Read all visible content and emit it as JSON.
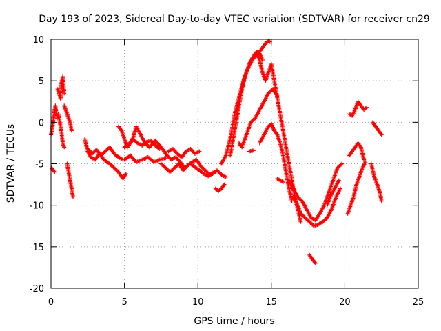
{
  "chart_data": {
    "type": "scatter",
    "title": "Day 193 of 2023, Sidereal Day-to-day VTEC variation (SDTVAR) for receiver cn29",
    "xlabel": "GPS time / hours",
    "ylabel": "SDTVAR / TECUs",
    "xlim": [
      0,
      25
    ],
    "ylim": [
      -20,
      10
    ],
    "xticks": [
      0,
      5,
      10,
      15,
      20,
      25
    ],
    "yticks": [
      -20,
      -15,
      -10,
      -5,
      0,
      5,
      10
    ],
    "xtick_labels": [
      "0",
      "5",
      "10",
      "15",
      "20",
      "25"
    ],
    "ytick_labels": [
      "-20",
      "-15",
      "-10",
      "-5",
      "0",
      "5",
      "10"
    ],
    "grid": true,
    "marker": "+",
    "series": [
      {
        "name": "SDTVAR",
        "color": "#ff0000",
        "traces": [
          {
            "x": [
              0,
              0.1,
              0.2,
              0.3,
              0.4
            ],
            "y": [
              -1.5,
              -0.5,
              1,
              2,
              0.5
            ]
          },
          {
            "x": [
              0.05,
              0.15,
              0.25
            ],
            "y": [
              -5.5,
              -5.8,
              -6
            ]
          },
          {
            "x": [
              0.45,
              0.55,
              0.65,
              0.7,
              0.8,
              0.9
            ],
            "y": [
              4,
              3.5,
              2.8,
              4.5,
              5.5,
              3.5
            ]
          },
          {
            "x": [
              0.5,
              0.6,
              0.7,
              0.8,
              0.9
            ],
            "y": [
              1,
              0,
              -1,
              -2.5,
              -3
            ]
          },
          {
            "x": [
              0.9,
              1,
              1.1,
              1.2,
              1.3,
              1.4
            ],
            "y": [
              2,
              1.5,
              1,
              0.5,
              0,
              -1
            ]
          },
          {
            "x": [
              1.1,
              1.2,
              1.3,
              1.4,
              1.5
            ],
            "y": [
              -5,
              -6,
              -7,
              -8,
              -9
            ]
          },
          {
            "x": [
              2.3,
              2.5,
              2.7,
              3,
              3.3,
              3.6,
              4,
              4.3,
              4.6,
              4.9,
              5.1
            ],
            "y": [
              -2,
              -3.5,
              -4.2,
              -4.5,
              -3.8,
              -4.5,
              -5,
              -5.5,
              -6,
              -6.8,
              -6.2
            ]
          },
          {
            "x": [
              2.5,
              2.8,
              3.1,
              3.4,
              3.7,
              4,
              4.3,
              4.6,
              4.9
            ],
            "y": [
              -3.2,
              -3.8,
              -3.3,
              -4,
              -3.5,
              -3,
              -3.8,
              -4.2,
              -4.5
            ]
          },
          {
            "x": [
              4.6,
              4.8,
              5,
              5.2,
              5.4,
              5.6,
              5.8,
              6.1,
              6.4,
              6.7,
              7.1,
              7.5,
              7.9,
              8.2,
              8.5,
              8.8,
              9.1
            ],
            "y": [
              -0.5,
              -1,
              -2,
              -3,
              -2.5,
              -1.8,
              -0.5,
              -1.5,
              -2.5,
              -3,
              -2.2,
              -3,
              -4,
              -4.5,
              -4.2,
              -4.8,
              -5.5
            ]
          },
          {
            "x": [
              5,
              5.4,
              5.8,
              6.2,
              6.6,
              7,
              7.4,
              7.8
            ],
            "y": [
              -4.5,
              -4,
              -4.8,
              -4.5,
              -4.2,
              -4.8,
              -4.5,
              -4.3
            ]
          },
          {
            "x": [
              5,
              5.3,
              5.6,
              5.9,
              6.2,
              6.5,
              6.8,
              7.1,
              7.4
            ],
            "y": [
              -3,
              -2.6,
              -2.1,
              -2.5,
              -2.8,
              -2.4,
              -2.2,
              -2.8,
              -3.2
            ]
          },
          {
            "x": [
              7.5,
              7.8,
              8.1,
              8.4,
              8.7,
              9,
              9.3,
              9.6,
              9.9,
              10.2,
              10.5,
              10.8,
              11.1
            ],
            "y": [
              -5,
              -5.5,
              -6,
              -5.5,
              -5,
              -5.8,
              -5.2,
              -4.8,
              -4.5,
              -5.3,
              -5.8,
              -6.3,
              -6
            ]
          },
          {
            "x": [
              8,
              8.3,
              8.6,
              8.9,
              9.2,
              9.5,
              9.8,
              10.1
            ],
            "y": [
              -3.5,
              -3.2,
              -3.8,
              -4.2,
              -3.5,
              -3.2,
              -3.8,
              -3.5
            ]
          },
          {
            "x": [
              9.5,
              9.8,
              10.1,
              10.4,
              10.7,
              11,
              11.3,
              11.6,
              11.9
            ],
            "y": [
              -5,
              -5.4,
              -5.8,
              -6.2,
              -6.5,
              -6.2,
              -5.8,
              -6.3,
              -6.6
            ]
          },
          {
            "x": [
              11.2,
              11.4,
              11.6,
              11.8
            ],
            "y": [
              -8,
              -8.3,
              -8,
              -7.5
            ]
          },
          {
            "x": [
              11.6,
              11.9,
              12.2,
              12.5,
              12.8,
              13.1,
              13.4,
              13.7,
              14,
              14.2,
              14.4,
              14.6,
              14.8,
              14.9
            ],
            "y": [
              -5,
              -4,
              -2,
              1,
              3,
              5,
              6.5,
              7.5,
              8.2,
              8.5,
              9,
              9.5,
              9.8,
              9.7
            ]
          },
          {
            "x": [
              12.2,
              12.4,
              12.6,
              12.8,
              13,
              13.2,
              13.4,
              13.6,
              13.8,
              14,
              14.2,
              14.4
            ],
            "y": [
              -4,
              -2,
              0,
              2,
              4,
              5.5,
              6.5,
              7.5,
              8,
              8.5,
              8.3,
              7.5
            ]
          },
          {
            "x": [
              14,
              14.2,
              14.4,
              14.6,
              14.8,
              15,
              15.2,
              15.4,
              15.6,
              15.8,
              16,
              16.2,
              16.4,
              16.6,
              16.8,
              17
            ],
            "y": [
              8.5,
              7.5,
              6,
              5,
              6,
              7,
              5,
              3,
              1,
              -1,
              -3,
              -5,
              -7,
              -9,
              -10.5,
              -12
            ]
          },
          {
            "x": [
              12.8,
              13,
              13.3,
              13.6,
              13.9,
              14.2,
              14.5,
              14.8,
              15.1,
              15.4
            ],
            "y": [
              -2.5,
              -3,
              -1.5,
              0,
              0.5,
              1.5,
              2.5,
              3.5,
              4,
              3.2
            ]
          },
          {
            "x": [
              13.5,
              13.8
            ],
            "y": [
              -3.5,
              -3.4
            ]
          },
          {
            "x": [
              14.2,
              14.5,
              14.8,
              15,
              15.2,
              15.4,
              15.6,
              15.8,
              16,
              16.2,
              16.4
            ],
            "y": [
              -2.5,
              -1.5,
              -0.5,
              -0.2,
              -1,
              -1.5,
              -2.5,
              -4,
              -6,
              -8,
              -9.5
            ]
          },
          {
            "x": [
              15.4,
              15.6,
              15.8
            ],
            "y": [
              -6.8,
              -7,
              -7.2
            ]
          },
          {
            "x": [
              16.2,
              16.5,
              16.8,
              17.1,
              17.4,
              17.7,
              18,
              18.3,
              18.6,
              18.9,
              19.2,
              19.5,
              19.8
            ],
            "y": [
              -7,
              -8,
              -9,
              -9.5,
              -10.5,
              -11.5,
              -11.8,
              -11,
              -10,
              -8.5,
              -7,
              -5.5,
              -5
            ]
          },
          {
            "x": [
              16.5,
              16.8,
              17,
              17.3,
              17.6,
              17.9,
              18.2,
              18.5,
              18.8,
              19.1,
              19.4,
              19.7
            ],
            "y": [
              -9,
              -10,
              -11,
              -11.5,
              -12,
              -12.5,
              -12.3,
              -12,
              -11.5,
              -10.5,
              -9,
              -8
            ]
          },
          {
            "x": [
              17.6,
              17.8,
              18
            ],
            "y": [
              -16,
              -16.5,
              -17
            ]
          },
          {
            "x": [
              18.8,
              19,
              19.3,
              19.6
            ],
            "y": [
              -10,
              -9,
              -8,
              -7
            ]
          },
          {
            "x": [
              20.3,
              20.5,
              20.7,
              20.9,
              21.1,
              21.3,
              21.5
            ],
            "y": [
              1,
              0.8,
              1.5,
              2.5,
              2,
              1.5,
              1.8
            ]
          },
          {
            "x": [
              20.3,
              20.5,
              20.7,
              20.9,
              21.1,
              21.3
            ],
            "y": [
              -4,
              -3.5,
              -3,
              -2.5,
              -3,
              -4.5
            ]
          },
          {
            "x": [
              20.2,
              20.4,
              20.6,
              20.8,
              21,
              21.2,
              21.4
            ],
            "y": [
              -11,
              -10,
              -9,
              -7.5,
              -6.5,
              -5.5,
              -4.8
            ]
          },
          {
            "x": [
              21.9,
              22.1,
              22.3,
              22.5
            ],
            "y": [
              0,
              -0.5,
              -1,
              -1.5
            ]
          },
          {
            "x": [
              21.8,
              22,
              22.2,
              22.4,
              22.5
            ],
            "y": [
              -5,
              -6.5,
              -7.5,
              -8.5,
              -9.5
            ]
          }
        ]
      }
    ]
  }
}
